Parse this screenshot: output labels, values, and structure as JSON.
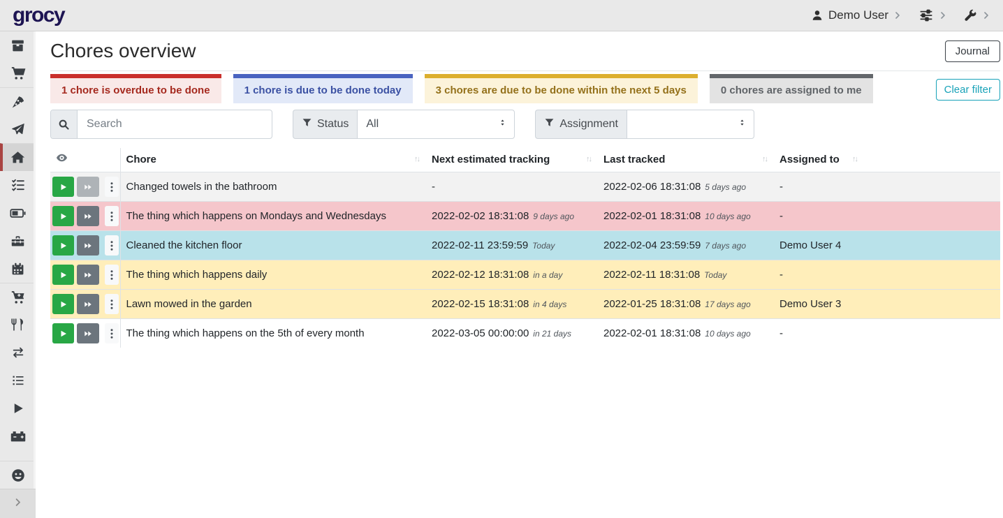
{
  "navbar": {
    "logo": "grocy",
    "user_label": "Demo User"
  },
  "sidebar": {
    "items": [
      {
        "name": "stock-overview",
        "icon": "box-open"
      },
      {
        "name": "shopping-list",
        "icon": "shopping-cart"
      },
      {
        "name": "recipes",
        "icon": "pizza-slice",
        "divider": true
      },
      {
        "name": "meal-plan",
        "icon": "paper-plane"
      },
      {
        "name": "chores-overview",
        "icon": "home",
        "active": true,
        "divider": true
      },
      {
        "name": "tasks",
        "icon": "tasks"
      },
      {
        "name": "batteries",
        "icon": "battery"
      },
      {
        "name": "equipment",
        "icon": "toolbox"
      },
      {
        "name": "calendar",
        "icon": "calendar"
      },
      {
        "name": "purchase",
        "icon": "cart-plus",
        "divider": true
      },
      {
        "name": "consume",
        "icon": "utensils"
      },
      {
        "name": "transfer",
        "icon": "exchange"
      },
      {
        "name": "inventory",
        "icon": "list"
      },
      {
        "name": "chore-tracking",
        "icon": "play"
      },
      {
        "name": "battery-tracking",
        "icon": "car-battery"
      },
      {
        "name": "user-entities",
        "icon": "smiley",
        "divider": true,
        "pinned_bottom": true
      }
    ]
  },
  "page": {
    "title": "Chores overview",
    "journal_label": "Journal"
  },
  "filter_cards": [
    {
      "label": "1 chore is overdue to be done",
      "border": "#c9302c",
      "bg": "#f9e9e8",
      "text": "#a52a1f"
    },
    {
      "label": "1 chore is due to be done today",
      "border": "#4a64c0",
      "bg": "#e2e9f8",
      "text": "#3b51a3"
    },
    {
      "label": "3 chores are due to be done within the next 5 days",
      "border": "#dcaf2e",
      "bg": "#fcf3da",
      "text": "#94711b"
    },
    {
      "label": "0 chores are assigned to me",
      "border": "#63676b",
      "bg": "#e3e3e3",
      "text": "#606468"
    }
  ],
  "clear_filter_label": "Clear filter",
  "accent_colors": {
    "clear_filter": "#17a2b8",
    "play": "#28a745",
    "skip": "#6c757d",
    "active_marker": "#a94442"
  },
  "search": {
    "placeholder": "Search"
  },
  "status_filter": {
    "label": "Status",
    "value": "All"
  },
  "assignment_filter": {
    "label": "Assignment",
    "value": ""
  },
  "table": {
    "columns": [
      "Chore",
      "Next estimated tracking",
      "Last tracked",
      "Assigned to"
    ],
    "rows": [
      {
        "chore": "Changed towels in the bathroom",
        "next": "-",
        "next_rel": "",
        "last": "2022-02-06 18:31:08",
        "last_rel": "5 days ago",
        "assigned": "-",
        "variant": "stripe",
        "skip_disabled": true
      },
      {
        "chore": "The thing which happens on Mondays and Wednesdays",
        "next": "2022-02-02 18:31:08",
        "next_rel": "9 days ago",
        "last": "2022-02-01 18:31:08",
        "last_rel": "10 days ago",
        "assigned": "-",
        "variant": "danger",
        "skip_disabled": false
      },
      {
        "chore": "Cleaned the kitchen floor",
        "next": "2022-02-11 23:59:59",
        "next_rel": "Today",
        "last": "2022-02-04 23:59:59",
        "last_rel": "7 days ago",
        "assigned": "Demo User 4",
        "variant": "info",
        "skip_disabled": false
      },
      {
        "chore": "The thing which happens daily",
        "next": "2022-02-12 18:31:08",
        "next_rel": "in a day",
        "last": "2022-02-11 18:31:08",
        "last_rel": "Today",
        "assigned": "-",
        "variant": "warning",
        "skip_disabled": false
      },
      {
        "chore": "Lawn mowed in the garden",
        "next": "2022-02-15 18:31:08",
        "next_rel": "in 4 days",
        "last": "2022-01-25 18:31:08",
        "last_rel": "17 days ago",
        "assigned": "Demo User 3",
        "variant": "warning",
        "skip_disabled": false
      },
      {
        "chore": "The thing which happens on the 5th of every month",
        "next": "2022-03-05 00:00:00",
        "next_rel": "in 21 days",
        "last": "2022-02-01 18:31:08",
        "last_rel": "10 days ago",
        "assigned": "-",
        "variant": "none",
        "skip_disabled": false
      }
    ]
  }
}
